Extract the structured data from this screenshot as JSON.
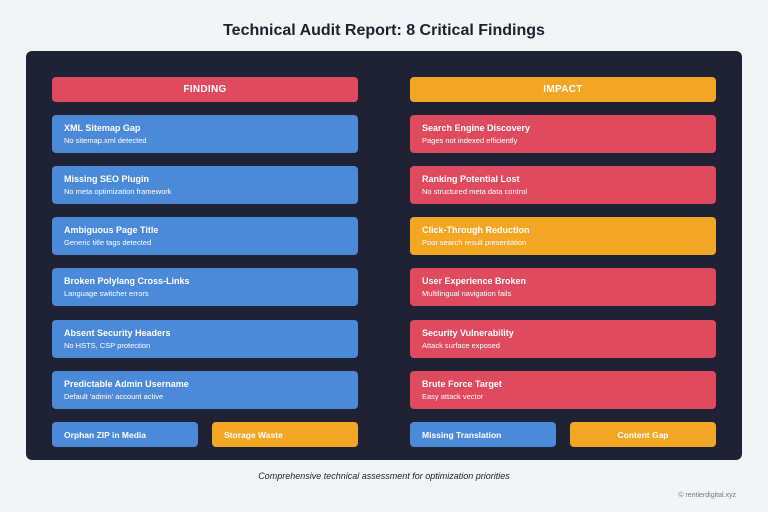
{
  "title": "Technical Audit Report: 8 Critical Findings",
  "colors": {
    "blue": "#4a8ad9",
    "red": "#e04a5f",
    "orange": "#f2a623",
    "panel": "#1f2233"
  },
  "headers": {
    "finding": "FINDING",
    "impact": "IMPACT"
  },
  "findings": [
    {
      "title": "XML Sitemap Gap",
      "sub": "No sitemap.xml detected"
    },
    {
      "title": "Missing SEO Plugin",
      "sub": "No meta optimization framework"
    },
    {
      "title": "Ambiguous Page Title",
      "sub": "Generic title tags detected"
    },
    {
      "title": "Broken Polylang Cross-Links",
      "sub": "Language switcher errors"
    },
    {
      "title": "Absent Security Headers",
      "sub": "No HSTS, CSP protection"
    },
    {
      "title": "Predictable Admin Username",
      "sub": "Default 'admin' account active"
    }
  ],
  "impacts": [
    {
      "title": "Search Engine Discovery",
      "sub": "Pages not indexed efficiently",
      "color": "red"
    },
    {
      "title": "Ranking Potential Lost",
      "sub": "No structured meta data control",
      "color": "red"
    },
    {
      "title": "Click-Through Reduction",
      "sub": "Poor search result presentation",
      "color": "orange"
    },
    {
      "title": "User Experience Broken",
      "sub": "Multilingual navigation fails",
      "color": "red"
    },
    {
      "title": "Security Vulnerability",
      "sub": "Attack surface exposed",
      "color": "red"
    },
    {
      "title": "Brute Force Target",
      "sub": "Easy attack vector",
      "color": "red"
    }
  ],
  "bottom_row": [
    {
      "label": "Orphan ZIP in Media",
      "color": "blue"
    },
    {
      "label": "Storage Waste",
      "color": "orange"
    },
    {
      "label": "Missing Translation",
      "color": "blue"
    },
    {
      "label": "Content Gap",
      "color": "orange"
    }
  ],
  "caption": "Comprehensive technical assessment for optimization priorities",
  "credit": "© rentierdigital.xyz"
}
